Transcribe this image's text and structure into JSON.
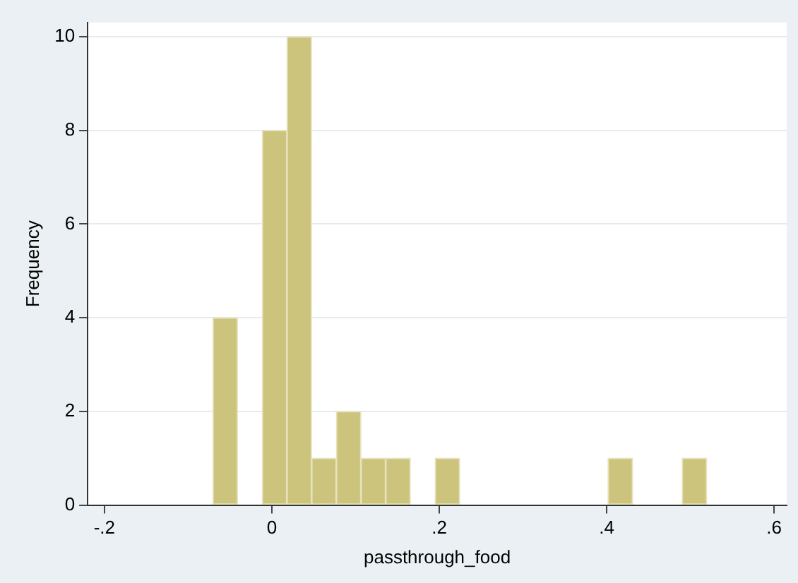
{
  "chart_data": {
    "type": "histogram",
    "xlabel": "passthrough_food",
    "ylabel": "Frequency",
    "bins": [
      -0.0705,
      -0.041,
      -0.0115,
      0.018,
      0.0475,
      0.077,
      0.1065,
      0.136,
      0.1655,
      0.195,
      0.2245,
      0.254,
      0.2835,
      0.313,
      0.3425,
      0.372,
      0.4015,
      0.431,
      0.4605,
      0.49,
      0.5195
    ],
    "values": [
      4,
      0,
      8,
      10,
      1,
      2,
      1,
      1,
      0,
      1,
      0,
      0,
      0,
      0,
      0,
      0,
      1,
      0,
      0,
      1
    ],
    "color": "#ccc47c",
    "xlim": [
      -0.22,
      0.615
    ],
    "xticks": [
      {
        "value": -0.2,
        "label": "-.2"
      },
      0,
      {
        "value": 0.2,
        "label": ".2"
      },
      {
        "value": 0.4,
        "label": ".4"
      },
      {
        "value": 0.6,
        "label": ".6"
      }
    ],
    "ylim": [
      0,
      10.3
    ],
    "yticks": [
      0,
      2,
      4,
      6,
      8,
      10
    ],
    "grid": "y",
    "legend": false
  }
}
